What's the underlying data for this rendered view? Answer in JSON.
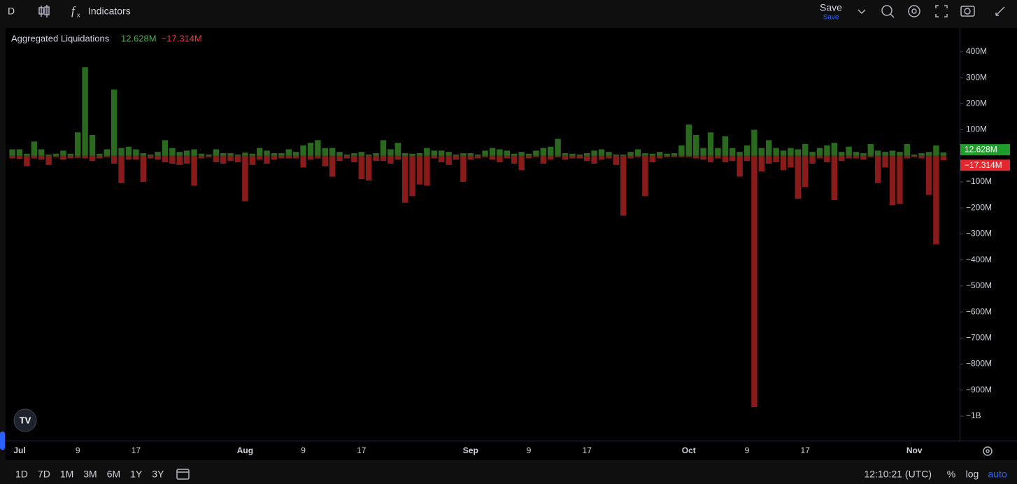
{
  "toolbar": {
    "interval": "D",
    "indicators": "Indicators",
    "save": "Save",
    "save_sub": "Save"
  },
  "bottom_bar": {
    "ranges": [
      "1D",
      "7D",
      "1M",
      "3M",
      "6M",
      "1Y",
      "3Y"
    ],
    "clock": "12:10:21 (UTC)",
    "percent": "%",
    "log": "log",
    "auto": "auto"
  },
  "chart_data": {
    "type": "bar",
    "title": "Aggregated Liquidations",
    "categories": [
      null,
      "Jul",
      null,
      null,
      null,
      null,
      null,
      null,
      null,
      "9",
      null,
      null,
      null,
      null,
      null,
      null,
      null,
      "17",
      null,
      null,
      null,
      null,
      null,
      null,
      null,
      null,
      null,
      null,
      null,
      null,
      null,
      null,
      "Aug",
      null,
      null,
      null,
      null,
      null,
      null,
      null,
      "9",
      null,
      null,
      null,
      null,
      null,
      null,
      null,
      "17",
      null,
      null,
      null,
      null,
      null,
      null,
      null,
      null,
      null,
      null,
      null,
      null,
      null,
      null,
      "Sep",
      null,
      null,
      null,
      null,
      null,
      null,
      null,
      "9",
      null,
      null,
      null,
      null,
      null,
      null,
      null,
      "17",
      null,
      null,
      null,
      null,
      null,
      null,
      null,
      null,
      null,
      null,
      null,
      null,
      null,
      "Oct",
      null,
      null,
      null,
      null,
      null,
      null,
      null,
      "9",
      null,
      null,
      null,
      null,
      null,
      null,
      null,
      "17",
      null,
      null,
      null,
      null,
      null,
      null,
      null,
      null,
      null,
      null,
      null,
      null,
      null,
      null,
      "Nov",
      null,
      null,
      null,
      null
    ],
    "series": [
      {
        "color": "#2a6a1e",
        "legend_color": "#4caf50",
        "last_label": "12.628M",
        "badge_color": "#1f9d2a",
        "values": [
          25,
          25,
          8,
          55,
          25,
          5,
          8,
          20,
          8,
          90,
          340,
          80,
          8,
          25,
          255,
          30,
          35,
          25,
          10,
          5,
          15,
          60,
          30,
          15,
          20,
          25,
          8,
          5,
          25,
          10,
          10,
          5,
          12,
          8,
          30,
          20,
          10,
          10,
          25,
          15,
          40,
          50,
          60,
          30,
          30,
          15,
          5,
          10,
          15,
          5,
          10,
          60,
          25,
          50,
          10,
          8,
          10,
          30,
          20,
          20,
          15,
          5,
          10,
          10,
          5,
          20,
          30,
          25,
          20,
          8,
          15,
          8,
          20,
          30,
          35,
          65,
          10,
          8,
          5,
          10,
          20,
          25,
          15,
          5,
          5,
          15,
          25,
          10,
          8,
          15,
          8,
          10,
          40,
          120,
          80,
          30,
          90,
          30,
          75,
          30,
          15,
          40,
          100,
          30,
          60,
          30,
          20,
          30,
          25,
          45,
          15,
          30,
          40,
          50,
          15,
          35,
          15,
          10,
          45,
          20,
          15,
          20,
          15,
          45,
          5,
          10,
          15,
          40,
          12.628
        ]
      },
      {
        "color": "#8a1b1b",
        "legend_color": "#f23645",
        "last_label": "−17.314M",
        "badge_color": "#e0282e",
        "values": [
          -10,
          -12,
          -40,
          -10,
          -15,
          -35,
          -5,
          -15,
          -10,
          -8,
          -10,
          -20,
          -10,
          -5,
          -30,
          -105,
          -15,
          -15,
          -100,
          -10,
          -15,
          -25,
          -30,
          -35,
          -30,
          -115,
          -10,
          -5,
          -25,
          -30,
          -20,
          -25,
          -175,
          -35,
          -15,
          -30,
          -15,
          -10,
          -10,
          -10,
          -45,
          -15,
          -10,
          -40,
          -80,
          -20,
          -10,
          -25,
          -90,
          -95,
          -20,
          -20,
          -30,
          -15,
          -180,
          -155,
          -110,
          -115,
          -10,
          -25,
          -35,
          -15,
          -100,
          -15,
          -10,
          -5,
          -15,
          -25,
          -10,
          -30,
          -55,
          -10,
          -5,
          -30,
          -15,
          -5,
          -15,
          -10,
          -10,
          -20,
          -30,
          -15,
          -10,
          -35,
          -230,
          -10,
          -5,
          -155,
          -25,
          -10,
          -5,
          -5,
          -5,
          -5,
          -10,
          -15,
          -25,
          -10,
          -25,
          -20,
          -80,
          -20,
          -965,
          -60,
          -30,
          -25,
          -55,
          -45,
          -165,
          -120,
          -30,
          -10,
          -25,
          -170,
          -20,
          -10,
          -10,
          -15,
          -5,
          -105,
          -45,
          -190,
          -185,
          -10,
          -5,
          -10,
          -150,
          -340,
          -17.314
        ]
      }
    ],
    "ylim": [
      -1094,
      491
    ],
    "yticks": [
      {
        "value": 400,
        "label": "400M"
      },
      {
        "value": 300,
        "label": "300M"
      },
      {
        "value": 200,
        "label": "200M"
      },
      {
        "value": 100,
        "label": "100M"
      },
      {
        "value": -100,
        "label": "−100M"
      },
      {
        "value": -200,
        "label": "−200M"
      },
      {
        "value": -300,
        "label": "−300M"
      },
      {
        "value": -400,
        "label": "−400M"
      },
      {
        "value": -500,
        "label": "−500M"
      },
      {
        "value": -600,
        "label": "−600M"
      },
      {
        "value": -700,
        "label": "−700M"
      },
      {
        "value": -800,
        "label": "−800M"
      },
      {
        "value": -900,
        "label": "−900M"
      },
      {
        "value": -1000,
        "label": "−1B"
      }
    ],
    "grid": false
  }
}
